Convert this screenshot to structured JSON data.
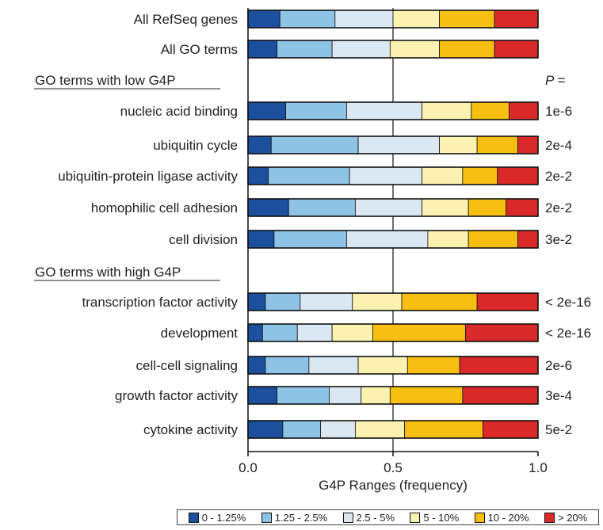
{
  "chart_data": {
    "type": "bar",
    "stacked": true,
    "orientation": "horizontal",
    "xlabel": "G4P Ranges (frequency)",
    "xlim": [
      0,
      1
    ],
    "xticks": [
      "0.0",
      "0.5",
      "1.0"
    ],
    "p_header": "P =",
    "series": [
      {
        "name": "0 - 1.25%",
        "color": "#1c4f9c"
      },
      {
        "name": "1.25 - 2.5%",
        "color": "#8fc3e6"
      },
      {
        "name": "2.5 - 5%",
        "color": "#dbe8f2"
      },
      {
        "name": "5 - 10%",
        "color": "#fbf2b2"
      },
      {
        "name": "10 - 20%",
        "color": "#f7bf12"
      },
      {
        "name": "> 20%",
        "color": "#d92929"
      }
    ],
    "groups": [
      {
        "label": "",
        "rows": [
          {
            "label": "All RefSeq genes",
            "p": "",
            "values": [
              0.11,
              0.19,
              0.2,
              0.16,
              0.19,
              0.15
            ]
          },
          {
            "label": "All GO terms",
            "p": "",
            "values": [
              0.1,
              0.19,
              0.2,
              0.17,
              0.19,
              0.15
            ]
          }
        ]
      },
      {
        "label": "GO terms with low G4P",
        "rows": [
          {
            "label": "nucleic acid binding",
            "p": "1e-6",
            "values": [
              0.13,
              0.21,
              0.26,
              0.17,
              0.13,
              0.1
            ]
          },
          {
            "label": "ubiquitin cycle",
            "p": "2e-4",
            "values": [
              0.08,
              0.3,
              0.28,
              0.13,
              0.14,
              0.07
            ]
          },
          {
            "label": "ubiquitin-protein ligase activity",
            "p": "2e-2",
            "values": [
              0.07,
              0.28,
              0.25,
              0.14,
              0.12,
              0.14
            ]
          },
          {
            "label": "homophilic cell adhesion",
            "p": "2e-2",
            "values": [
              0.14,
              0.23,
              0.23,
              0.16,
              0.13,
              0.11
            ]
          },
          {
            "label": "cell division",
            "p": "3e-2",
            "values": [
              0.09,
              0.25,
              0.28,
              0.14,
              0.17,
              0.07
            ]
          }
        ]
      },
      {
        "label": "GO terms with high G4P",
        "rows": [
          {
            "label": "transcription factor activity",
            "p": "< 2e-16",
            "values": [
              0.06,
              0.12,
              0.18,
              0.17,
              0.26,
              0.21
            ]
          },
          {
            "label": "development",
            "p": "< 2e-16",
            "values": [
              0.05,
              0.12,
              0.12,
              0.14,
              0.32,
              0.25
            ]
          },
          {
            "label": "cell-cell signaling",
            "p": "2e-6",
            "values": [
              0.06,
              0.15,
              0.17,
              0.17,
              0.18,
              0.27
            ]
          },
          {
            "label": "growth factor activity",
            "p": "3e-4",
            "values": [
              0.1,
              0.18,
              0.11,
              0.1,
              0.25,
              0.26
            ]
          },
          {
            "label": "cytokine activity",
            "p": "5e-2",
            "values": [
              0.12,
              0.13,
              0.12,
              0.17,
              0.27,
              0.19
            ]
          }
        ]
      }
    ]
  }
}
